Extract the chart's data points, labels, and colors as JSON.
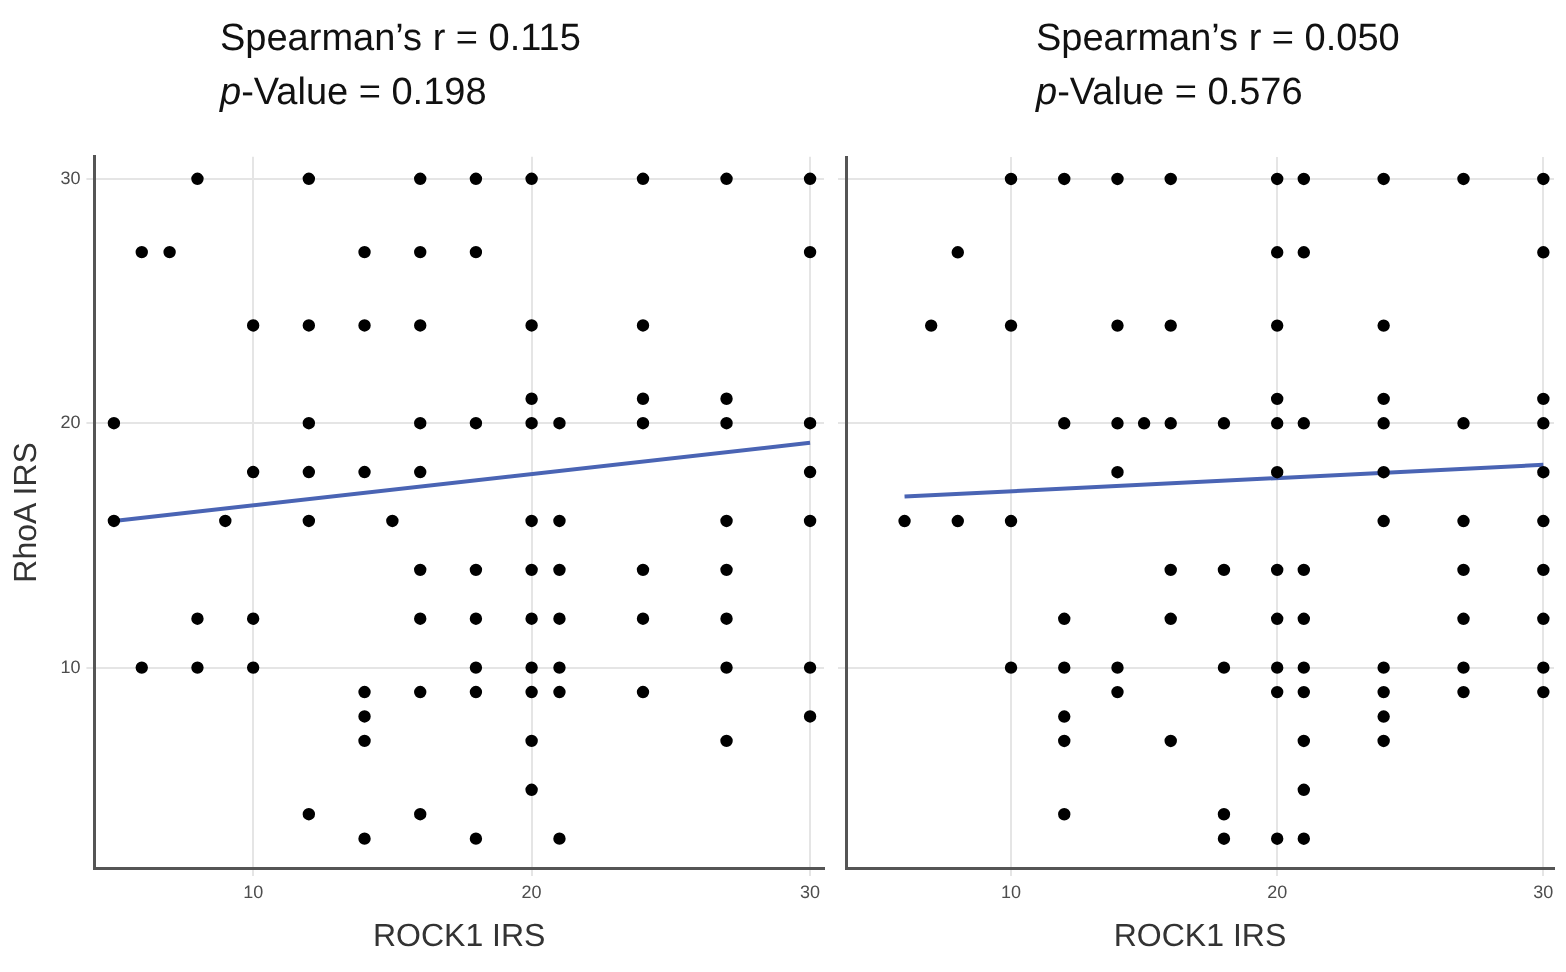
{
  "chart_data": [
    {
      "type": "scatter",
      "title": "Spearman’s r = 0.115",
      "subtitle": "p-Value = 0.198",
      "xlabel": "ROCK1 IRS",
      "ylabel": "RhoA IRS",
      "xlim": [
        4.3,
        30.5
      ],
      "ylim": [
        1.8,
        30.9
      ],
      "xticks": [
        10,
        20,
        30
      ],
      "yticks": [
        10,
        20,
        30
      ],
      "grid": true,
      "series": [
        {
          "type": "scatter",
          "marker": "circle",
          "color": "#000000",
          "x": [
            8,
            12,
            16,
            18,
            20,
            24,
            27,
            30,
            6,
            7,
            14,
            16,
            18,
            30,
            10,
            12,
            14,
            16,
            20,
            24,
            20,
            24,
            27,
            5,
            12,
            16,
            18,
            20,
            21,
            24,
            27,
            30,
            10,
            12,
            14,
            16,
            30,
            5,
            9,
            12,
            15,
            20,
            21,
            27,
            30,
            16,
            18,
            20,
            21,
            24,
            27,
            8,
            10,
            16,
            18,
            20,
            21,
            24,
            27,
            6,
            8,
            10,
            18,
            20,
            21,
            27,
            30,
            14,
            16,
            18,
            20,
            21,
            24,
            14,
            30,
            14,
            20,
            27,
            20,
            12,
            16,
            14,
            18,
            21
          ],
          "values": [
            30,
            30,
            30,
            30,
            30,
            30,
            30,
            30,
            27,
            27,
            27,
            27,
            27,
            27,
            24,
            24,
            24,
            24,
            24,
            24,
            21,
            21,
            21,
            20,
            20,
            20,
            20,
            20,
            20,
            20,
            20,
            20,
            18,
            18,
            18,
            18,
            18,
            16,
            16,
            16,
            16,
            16,
            16,
            16,
            16,
            14,
            14,
            14,
            14,
            14,
            14,
            12,
            12,
            12,
            12,
            12,
            12,
            12,
            12,
            10,
            10,
            10,
            10,
            10,
            10,
            10,
            10,
            9,
            9,
            9,
            9,
            9,
            9,
            8,
            8,
            7,
            7,
            7,
            5,
            4,
            4,
            3,
            3,
            3
          ]
        },
        {
          "type": "line",
          "color": "#4a64b4",
          "x": [
            5,
            30
          ],
          "values": [
            16,
            19.2
          ]
        }
      ]
    },
    {
      "type": "scatter",
      "title": "Spearman’s r = 0.050",
      "subtitle": "p-Value = 0.576",
      "xlabel": "ROCK1 IRS",
      "xlim": [
        3.8,
        30.4
      ],
      "ylim": [
        1.8,
        30.9
      ],
      "xticks": [
        10,
        20,
        30
      ],
      "yticks": [
        10,
        20,
        30
      ],
      "tick_labels": "x",
      "grid": true,
      "series": [
        {
          "type": "scatter",
          "marker": "circle",
          "color": "#000000",
          "x": [
            10,
            12,
            14,
            16,
            20,
            21,
            24,
            27,
            30,
            8,
            20,
            21,
            30,
            7,
            10,
            14,
            16,
            20,
            24,
            20,
            24,
            30,
            12,
            14,
            15,
            16,
            18,
            20,
            21,
            24,
            27,
            30,
            14,
            20,
            24,
            30,
            6,
            8,
            10,
            24,
            27,
            30,
            16,
            18,
            20,
            21,
            27,
            30,
            12,
            16,
            20,
            21,
            27,
            30,
            10,
            12,
            14,
            18,
            20,
            21,
            24,
            27,
            30,
            14,
            20,
            21,
            24,
            27,
            30,
            12,
            24,
            12,
            16,
            21,
            24,
            21,
            12,
            18,
            18,
            20,
            21
          ],
          "values": [
            30,
            30,
            30,
            30,
            30,
            30,
            30,
            30,
            30,
            27,
            27,
            27,
            27,
            24,
            24,
            24,
            24,
            24,
            24,
            21,
            21,
            21,
            20,
            20,
            20,
            20,
            20,
            20,
            20,
            20,
            20,
            20,
            18,
            18,
            18,
            18,
            16,
            16,
            16,
            16,
            16,
            16,
            14,
            14,
            14,
            14,
            14,
            14,
            12,
            12,
            12,
            12,
            12,
            12,
            10,
            10,
            10,
            10,
            10,
            10,
            10,
            10,
            10,
            9,
            9,
            9,
            9,
            9,
            9,
            8,
            8,
            7,
            7,
            7,
            7,
            5,
            4,
            4,
            3,
            3,
            3
          ]
        },
        {
          "type": "line",
          "color": "#4a64b4",
          "x": [
            6,
            30
          ],
          "values": [
            17,
            18.3
          ]
        }
      ]
    }
  ]
}
